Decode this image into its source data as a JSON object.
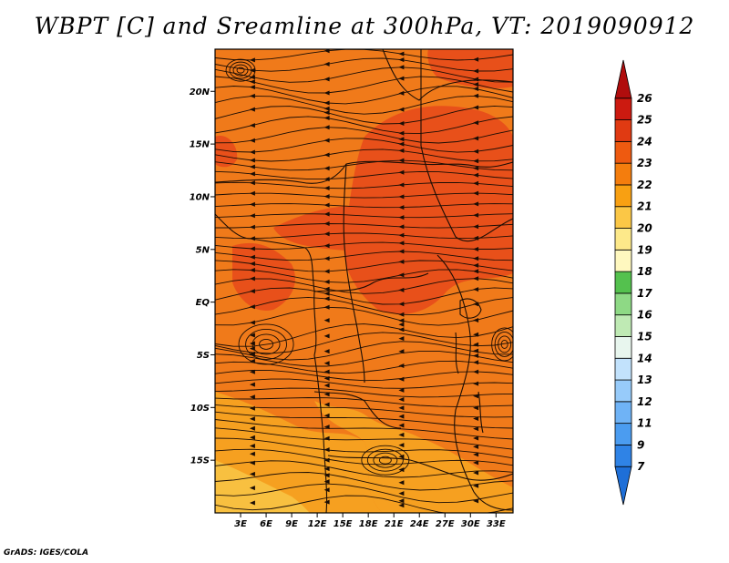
{
  "title": "WBPT [C] and Sreamline at 300hPa, VT: 2019090912",
  "credit": "GrADS: IGES/COLA",
  "map": {
    "lon_min": 0,
    "lon_max": 35,
    "lat_min": -20,
    "lat_max": 24,
    "lon_ticks": [
      {
        "value": 3,
        "label": "3E"
      },
      {
        "value": 6,
        "label": "6E"
      },
      {
        "value": 9,
        "label": "9E"
      },
      {
        "value": 12,
        "label": "12E"
      },
      {
        "value": 15,
        "label": "15E"
      },
      {
        "value": 18,
        "label": "18E"
      },
      {
        "value": 21,
        "label": "21E"
      },
      {
        "value": 24,
        "label": "24E"
      },
      {
        "value": 27,
        "label": "27E"
      },
      {
        "value": 30,
        "label": "30E"
      },
      {
        "value": 33,
        "label": "33E"
      }
    ],
    "lat_ticks": [
      {
        "value": 20,
        "label": "20N"
      },
      {
        "value": 15,
        "label": "15N"
      },
      {
        "value": 10,
        "label": "10N"
      },
      {
        "value": 5,
        "label": "5N"
      },
      {
        "value": 0,
        "label": "EQ"
      },
      {
        "value": -5,
        "label": "5S"
      },
      {
        "value": -10,
        "label": "10S"
      },
      {
        "value": -15,
        "label": "15S"
      }
    ]
  },
  "colorbar": {
    "levels": [
      "7",
      "9",
      "11",
      "12",
      "13",
      "14",
      "15",
      "16",
      "17",
      "18",
      "19",
      "20",
      "21",
      "22",
      "23",
      "24",
      "25",
      "26"
    ],
    "colors": [
      "#1e6fd8",
      "#2f83e6",
      "#4b9cf0",
      "#6fb3f6",
      "#97cbfa",
      "#c2e2fc",
      "#e8f6ee",
      "#bfeab4",
      "#8ed985",
      "#54c14e",
      "#fff8bf",
      "#fde98a",
      "#fbc746",
      "#f8a012",
      "#f47d0d",
      "#ee5a10",
      "#e03a12",
      "#cc1a10",
      "#b00d0d"
    ]
  },
  "field_colors": {
    "high": "#e8501a",
    "mid": "#f07a1a",
    "low": "#f6a020",
    "lowest": "#f8c040",
    "line": "#1a0d05"
  }
}
